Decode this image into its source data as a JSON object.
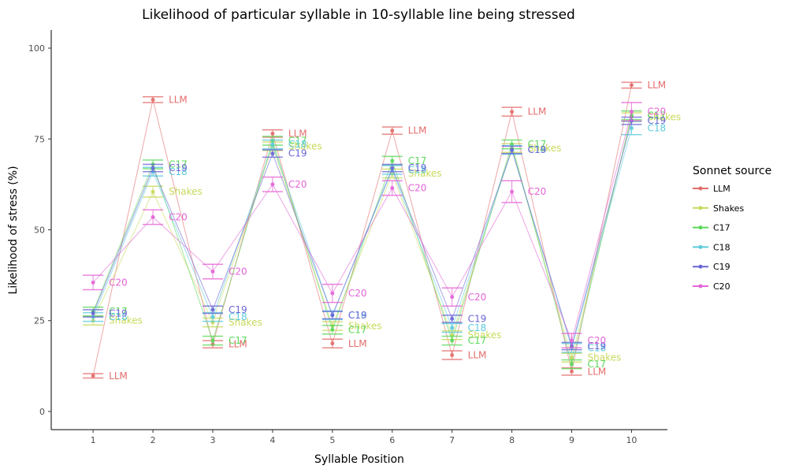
{
  "chart_data": {
    "type": "line",
    "title": "Likelihood of particular syllable in 10-syllable line being stressed",
    "xlabel": "Syllable Position",
    "ylabel": "Likelihood of stress (%)",
    "x": [
      1,
      2,
      3,
      4,
      5,
      6,
      7,
      8,
      9,
      10
    ],
    "xlim": [
      0.3,
      10.6
    ],
    "ylim": [
      -5,
      105
    ],
    "yticks": [
      0,
      25,
      50,
      75,
      100
    ],
    "grid": false,
    "legend": {
      "title": "Sonnet source",
      "placement": "right"
    },
    "series": [
      {
        "name": "LLM",
        "color": "#e36d6b",
        "values": [
          9.8,
          85.8,
          18.5,
          76.5,
          18.7,
          77.3,
          15.5,
          82.5,
          11.0,
          89.8
        ],
        "error": [
          0.6,
          0.8,
          1.0,
          1.0,
          1.2,
          1.0,
          1.2,
          1.2,
          1.0,
          0.8
        ]
      },
      {
        "name": "Shakes",
        "color": "#c9d95c",
        "values": [
          25.0,
          60.5,
          24.5,
          73.0,
          23.5,
          65.5,
          21.0,
          72.5,
          14.8,
          81.0
        ],
        "error": [
          1.2,
          1.5,
          1.2,
          1.2,
          1.2,
          1.2,
          1.2,
          1.2,
          1.2,
          1.2
        ]
      },
      {
        "name": "C17",
        "color": "#5cd75c",
        "values": [
          27.5,
          68.0,
          19.5,
          74.5,
          22.5,
          69.0,
          19.5,
          73.5,
          13.0,
          81.5
        ],
        "error": [
          1.2,
          1.2,
          1.2,
          1.2,
          1.2,
          1.2,
          1.2,
          1.2,
          1.2,
          1.2
        ]
      },
      {
        "name": "C18",
        "color": "#5ccbdd",
        "values": [
          26.0,
          66.0,
          26.0,
          73.5,
          26.5,
          66.5,
          23.0,
          72.0,
          17.5,
          78.0
        ],
        "error": [
          1.2,
          1.2,
          1.2,
          1.2,
          1.2,
          1.2,
          1.2,
          1.2,
          1.2,
          1.8
        ]
      },
      {
        "name": "C19",
        "color": "#6b66d6",
        "values": [
          27.0,
          67.0,
          28.0,
          71.0,
          26.5,
          67.0,
          25.5,
          72.0,
          18.0,
          80.0
        ],
        "error": [
          1.0,
          1.0,
          1.0,
          1.0,
          1.0,
          1.0,
          1.0,
          1.0,
          1.0,
          1.0
        ]
      },
      {
        "name": "C20",
        "color": "#e365d6",
        "values": [
          35.5,
          53.5,
          38.5,
          62.5,
          32.5,
          61.5,
          31.5,
          60.5,
          19.5,
          82.5
        ],
        "error": [
          2.0,
          2.0,
          2.0,
          2.0,
          2.5,
          2.0,
          2.5,
          3.0,
          2.0,
          2.5
        ]
      }
    ]
  }
}
